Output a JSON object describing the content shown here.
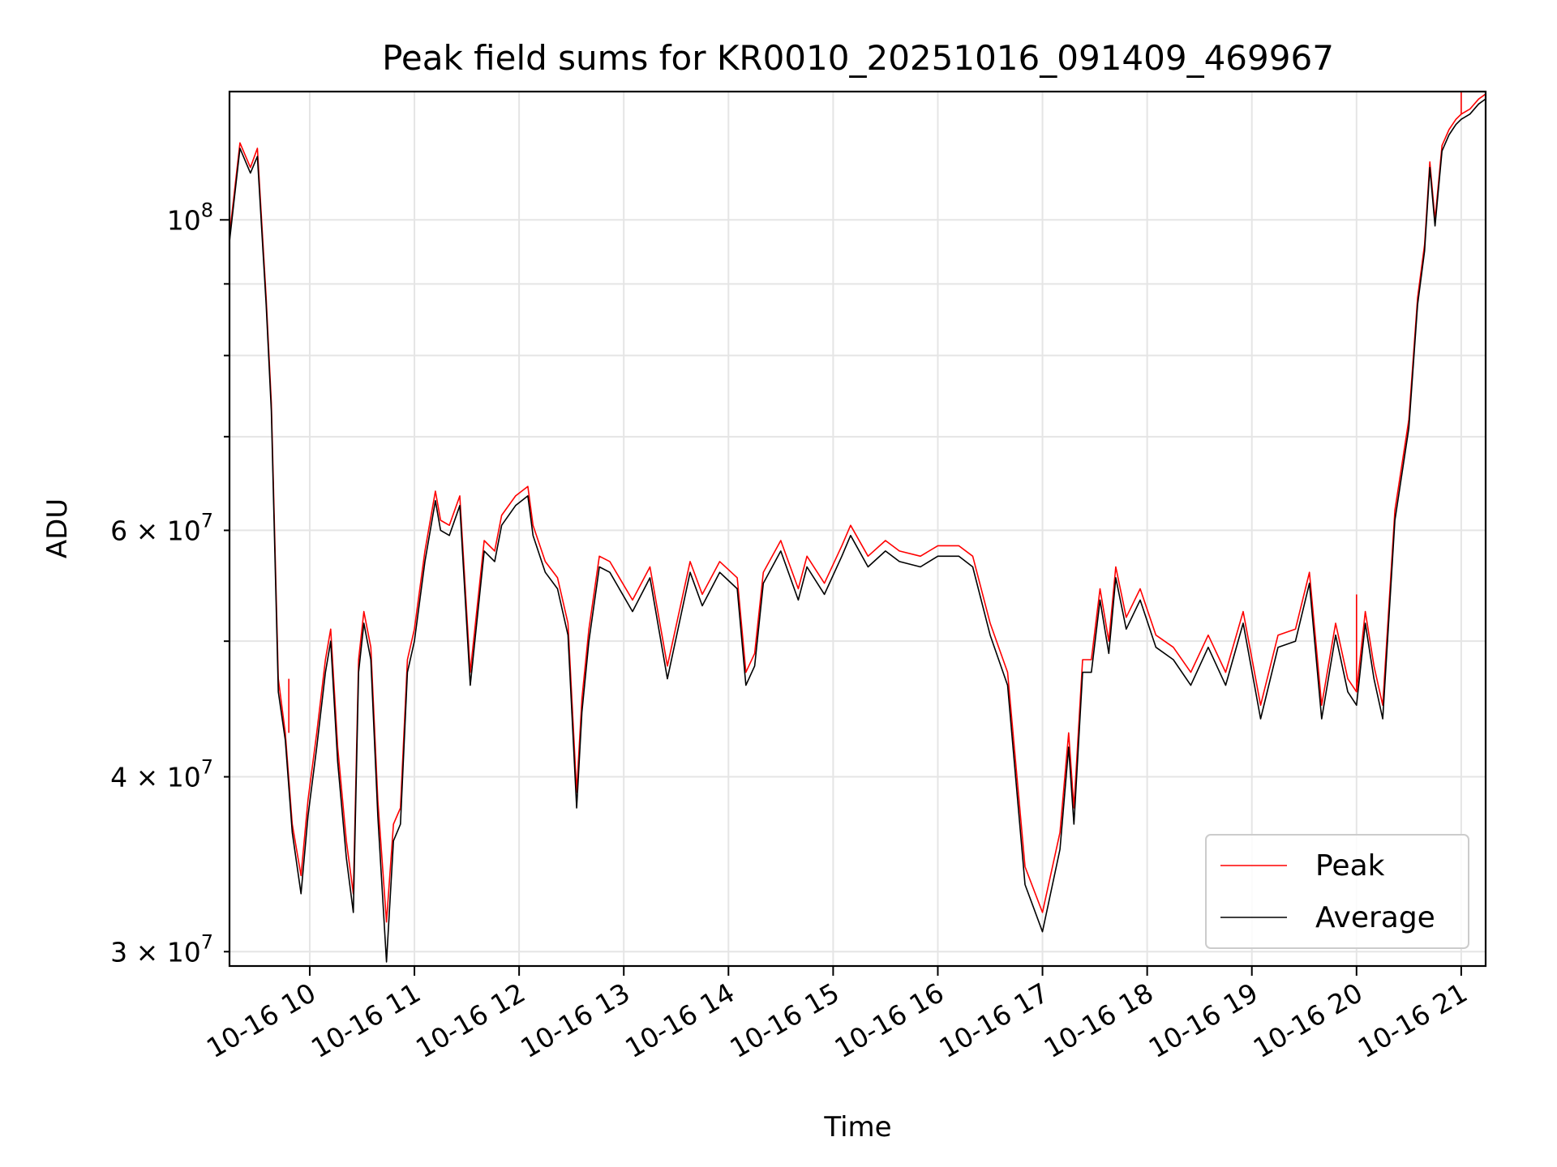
{
  "chart_data": {
    "type": "line",
    "title": "Peak field sums for KR0010_20251016_091409_469967",
    "xlabel": "Time",
    "ylabel": "ADU",
    "xlim": [
      "2025-10-16 09:14",
      "2025-10-16 21:14"
    ],
    "ylim": [
      29300000,
      123500000
    ],
    "yscale": "log",
    "grid": true,
    "legend_position": "lower-right",
    "x_ticks": [
      "10-16 10",
      "10-16 11",
      "10-16 12",
      "10-16 13",
      "10-16 14",
      "10-16 15",
      "10-16 16",
      "10-16 17",
      "10-16 18",
      "10-16 19",
      "10-16 20",
      "10-16 21"
    ],
    "y_ticks_major": [
      {
        "value": 100000000,
        "mantissa": "",
        "base": "10",
        "exp": "8"
      }
    ],
    "y_ticks_minor": [
      {
        "value": 30000000,
        "mantissa": "3",
        "base": "10",
        "exp": "7"
      },
      {
        "value": 40000000,
        "mantissa": "4",
        "base": "10",
        "exp": "7"
      },
      {
        "value": 60000000,
        "mantissa": "6",
        "base": "10",
        "exp": "7"
      }
    ],
    "y_gridlines_extra": [
      50000000,
      70000000,
      80000000,
      90000000
    ],
    "series": [
      {
        "name": "Peak",
        "color": "#ff0000",
        "x": [
          "2025-10-16 09:14",
          "2025-10-16 09:20",
          "2025-10-16 09:26",
          "2025-10-16 09:30",
          "2025-10-16 09:35",
          "2025-10-16 09:38",
          "2025-10-16 09:42",
          "2025-10-16 09:46",
          "2025-10-16 09:50",
          "2025-10-16 09:55",
          "2025-10-16 09:59",
          "2025-10-16 10:04",
          "2025-10-16 10:09",
          "2025-10-16 10:12",
          "2025-10-16 10:16",
          "2025-10-16 10:21",
          "2025-10-16 10:25",
          "2025-10-16 10:28",
          "2025-10-16 10:31",
          "2025-10-16 10:35",
          "2025-10-16 10:39",
          "2025-10-16 10:44",
          "2025-10-16 10:48",
          "2025-10-16 10:52",
          "2025-10-16 10:56",
          "2025-10-16 11:00",
          "2025-10-16 11:06",
          "2025-10-16 11:12",
          "2025-10-16 11:15",
          "2025-10-16 11:20",
          "2025-10-16 11:26",
          "2025-10-16 11:32",
          "2025-10-16 11:40",
          "2025-10-16 11:46",
          "2025-10-16 11:50",
          "2025-10-16 11:58",
          "2025-10-16 12:05",
          "2025-10-16 12:08",
          "2025-10-16 12:15",
          "2025-10-16 12:22",
          "2025-10-16 12:28",
          "2025-10-16 12:33",
          "2025-10-16 12:36",
          "2025-10-16 12:40",
          "2025-10-16 12:46",
          "2025-10-16 12:52",
          "2025-10-16 13:05",
          "2025-10-16 13:15",
          "2025-10-16 13:25",
          "2025-10-16 13:38",
          "2025-10-16 13:45",
          "2025-10-16 13:55",
          "2025-10-16 14:05",
          "2025-10-16 14:10",
          "2025-10-16 14:15",
          "2025-10-16 14:20",
          "2025-10-16 14:30",
          "2025-10-16 14:40",
          "2025-10-16 14:45",
          "2025-10-16 14:55",
          "2025-10-16 15:05",
          "2025-10-16 15:10",
          "2025-10-16 15:20",
          "2025-10-16 15:30",
          "2025-10-16 15:38",
          "2025-10-16 15:50",
          "2025-10-16 16:00",
          "2025-10-16 16:12",
          "2025-10-16 16:20",
          "2025-10-16 16:30",
          "2025-10-16 16:40",
          "2025-10-16 16:50",
          "2025-10-16 17:00",
          "2025-10-16 17:10",
          "2025-10-16 17:15",
          "2025-10-16 17:18",
          "2025-10-16 17:23",
          "2025-10-16 17:28",
          "2025-10-16 17:33",
          "2025-10-16 17:38",
          "2025-10-16 17:42",
          "2025-10-16 17:48",
          "2025-10-16 17:56",
          "2025-10-16 18:05",
          "2025-10-16 18:15",
          "2025-10-16 18:25",
          "2025-10-16 18:35",
          "2025-10-16 18:45",
          "2025-10-16 18:55",
          "2025-10-16 19:05",
          "2025-10-16 19:15",
          "2025-10-16 19:25",
          "2025-10-16 19:33",
          "2025-10-16 19:40",
          "2025-10-16 19:48",
          "2025-10-16 19:55",
          "2025-10-16 20:00",
          "2025-10-16 20:05",
          "2025-10-16 20:10",
          "2025-10-16 20:15",
          "2025-10-16 20:22",
          "2025-10-16 20:30",
          "2025-10-16 20:35",
          "2025-10-16 20:39",
          "2025-10-16 20:42",
          "2025-10-16 20:45",
          "2025-10-16 20:49",
          "2025-10-16 20:53",
          "2025-10-16 20:55",
          "2025-10-16 20:57",
          "2025-10-16 21:00",
          "2025-10-16 21:05",
          "2025-10-16 21:10",
          "2025-10-16 21:14"
        ],
        "values": [
          97500000,
          113500000,
          109000000,
          112500000,
          88000000,
          74000000,
          47000000,
          43000000,
          37000000,
          34000000,
          38500000,
          43000000,
          48500000,
          51000000,
          42000000,
          36000000,
          33000000,
          48500000,
          52500000,
          49500000,
          38500000,
          31500000,
          37000000,
          38000000,
          48500000,
          51000000,
          58000000,
          64000000,
          61000000,
          60500000,
          63500000,
          47500000,
          59000000,
          58000000,
          61500000,
          63500000,
          64500000,
          60500000,
          57000000,
          55500000,
          51500000,
          39000000,
          45500000,
          51000000,
          57500000,
          57000000,
          53500000,
          56500000,
          48000000,
          57000000,
          54000000,
          57000000,
          55500000,
          47500000,
          49000000,
          56000000,
          59000000,
          54500000,
          57500000,
          55000000,
          58500000,
          60500000,
          57500000,
          59000000,
          58000000,
          57500000,
          58500000,
          58500000,
          57500000,
          51500000,
          47500000,
          34500000,
          32000000,
          36500000,
          43000000,
          38000000,
          48500000,
          48500000,
          54500000,
          50000000,
          56500000,
          52000000,
          54500000,
          50500000,
          49500000,
          47500000,
          50500000,
          47500000,
          52500000,
          45000000,
          50500000,
          51000000,
          56000000,
          45000000,
          51500000,
          47000000,
          46000000,
          52500000,
          48000000,
          45000000,
          62000000,
          72000000,
          88000000,
          96000000,
          110000000,
          100000000,
          113000000,
          116000000,
          117000000,
          118000000,
          119000000,
          120000000,
          122000000,
          123000000
        ],
        "spikes": [
          {
            "x": "2025-10-16 09:48",
            "value": 47000000
          },
          {
            "x": "2025-10-16 20:00",
            "value": 54000000
          },
          {
            "x": "2025-10-16 21:00",
            "value": 123500000
          }
        ]
      },
      {
        "name": "Average",
        "color": "#000000",
        "x": [
          "2025-10-16 09:14",
          "2025-10-16 09:20",
          "2025-10-16 09:26",
          "2025-10-16 09:30",
          "2025-10-16 09:35",
          "2025-10-16 09:38",
          "2025-10-16 09:42",
          "2025-10-16 09:46",
          "2025-10-16 09:50",
          "2025-10-16 09:55",
          "2025-10-16 09:59",
          "2025-10-16 10:04",
          "2025-10-16 10:09",
          "2025-10-16 10:12",
          "2025-10-16 10:16",
          "2025-10-16 10:21",
          "2025-10-16 10:25",
          "2025-10-16 10:28",
          "2025-10-16 10:31",
          "2025-10-16 10:35",
          "2025-10-16 10:39",
          "2025-10-16 10:44",
          "2025-10-16 10:48",
          "2025-10-16 10:52",
          "2025-10-16 10:56",
          "2025-10-16 11:00",
          "2025-10-16 11:06",
          "2025-10-16 11:12",
          "2025-10-16 11:15",
          "2025-10-16 11:20",
          "2025-10-16 11:26",
          "2025-10-16 11:32",
          "2025-10-16 11:40",
          "2025-10-16 11:46",
          "2025-10-16 11:50",
          "2025-10-16 11:58",
          "2025-10-16 12:05",
          "2025-10-16 12:08",
          "2025-10-16 12:15",
          "2025-10-16 12:22",
          "2025-10-16 12:28",
          "2025-10-16 12:33",
          "2025-10-16 12:36",
          "2025-10-16 12:40",
          "2025-10-16 12:46",
          "2025-10-16 12:52",
          "2025-10-16 13:05",
          "2025-10-16 13:15",
          "2025-10-16 13:25",
          "2025-10-16 13:38",
          "2025-10-16 13:45",
          "2025-10-16 13:55",
          "2025-10-16 14:05",
          "2025-10-16 14:10",
          "2025-10-16 14:15",
          "2025-10-16 14:20",
          "2025-10-16 14:30",
          "2025-10-16 14:40",
          "2025-10-16 14:45",
          "2025-10-16 14:55",
          "2025-10-16 15:05",
          "2025-10-16 15:10",
          "2025-10-16 15:20",
          "2025-10-16 15:30",
          "2025-10-16 15:38",
          "2025-10-16 15:50",
          "2025-10-16 16:00",
          "2025-10-16 16:12",
          "2025-10-16 16:20",
          "2025-10-16 16:30",
          "2025-10-16 16:40",
          "2025-10-16 16:50",
          "2025-10-16 17:00",
          "2025-10-16 17:10",
          "2025-10-16 17:15",
          "2025-10-16 17:18",
          "2025-10-16 17:23",
          "2025-10-16 17:28",
          "2025-10-16 17:33",
          "2025-10-16 17:38",
          "2025-10-16 17:42",
          "2025-10-16 17:48",
          "2025-10-16 17:56",
          "2025-10-16 18:05",
          "2025-10-16 18:15",
          "2025-10-16 18:25",
          "2025-10-16 18:35",
          "2025-10-16 18:45",
          "2025-10-16 18:55",
          "2025-10-16 19:05",
          "2025-10-16 19:15",
          "2025-10-16 19:25",
          "2025-10-16 19:33",
          "2025-10-16 19:40",
          "2025-10-16 19:48",
          "2025-10-16 19:55",
          "2025-10-16 20:00",
          "2025-10-16 20:05",
          "2025-10-16 20:10",
          "2025-10-16 20:15",
          "2025-10-16 20:22",
          "2025-10-16 20:30",
          "2025-10-16 20:35",
          "2025-10-16 20:39",
          "2025-10-16 20:42",
          "2025-10-16 20:45",
          "2025-10-16 20:49",
          "2025-10-16 20:53",
          "2025-10-16 20:55",
          "2025-10-16 20:57",
          "2025-10-16 21:00",
          "2025-10-16 21:05",
          "2025-10-16 21:10",
          "2025-10-16 21:14"
        ],
        "values": [
          96500000,
          112500000,
          108000000,
          111000000,
          87000000,
          73000000,
          46000000,
          42500000,
          36500000,
          33000000,
          37500000,
          42000000,
          47500000,
          50000000,
          41000000,
          35000000,
          32000000,
          47500000,
          51500000,
          48500000,
          37500000,
          29500000,
          36000000,
          37000000,
          47500000,
          50000000,
          57000000,
          63000000,
          60000000,
          59500000,
          62500000,
          46500000,
          58000000,
          57000000,
          60500000,
          62500000,
          63500000,
          59500000,
          56000000,
          54500000,
          50500000,
          38000000,
          44500000,
          50000000,
          56500000,
          56000000,
          52500000,
          55500000,
          47000000,
          56000000,
          53000000,
          56000000,
          54500000,
          46500000,
          48000000,
          55000000,
          58000000,
          53500000,
          56500000,
          54000000,
          57500000,
          59500000,
          56500000,
          58000000,
          57000000,
          56500000,
          57500000,
          57500000,
          56500000,
          50500000,
          46500000,
          33500000,
          31000000,
          35500000,
          42000000,
          37000000,
          47500000,
          47500000,
          53500000,
          49000000,
          55500000,
          51000000,
          53500000,
          49500000,
          48500000,
          46500000,
          49500000,
          46500000,
          51500000,
          44000000,
          49500000,
          50000000,
          55000000,
          44000000,
          50500000,
          46000000,
          45000000,
          51500000,
          47000000,
          44000000,
          61000000,
          71000000,
          87000000,
          95000000,
          109000000,
          99000000,
          112000000,
          115000000,
          116000000,
          117000000,
          118000000,
          119000000,
          121000000,
          122000000
        ]
      }
    ]
  }
}
